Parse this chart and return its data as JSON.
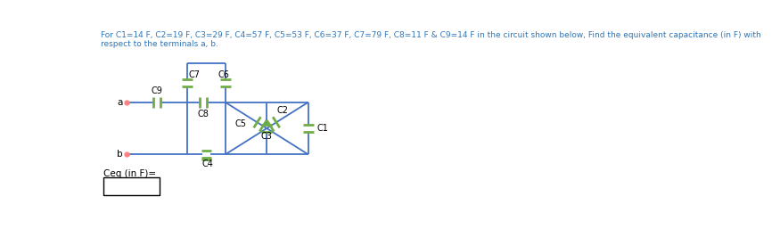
{
  "title_line1": "For C1=14 F, C2=19 F, C3=29 F, C4=57 F, C5=53 F, C6=37 F, C7=79 F, C8=11 F & C9=14 F in the circuit shown below, Find the equivalent capacitance (in F) with",
  "title_line2": "respect to the terminals a, b.",
  "title_color": "#2E75B6",
  "circuit_color": "#4472C4",
  "cap_color": "#70AD47",
  "text_color": "#000000",
  "ceq_label": "Ceq (in F)=",
  "nodes": {
    "xa": 0.42,
    "ya": 1.48,
    "xb": 0.42,
    "yb": 0.72,
    "xL": 1.3,
    "xM": 1.85,
    "xR": 3.05,
    "ytop": 2.05,
    "ymid": 1.48,
    "ybot": 0.72
  }
}
